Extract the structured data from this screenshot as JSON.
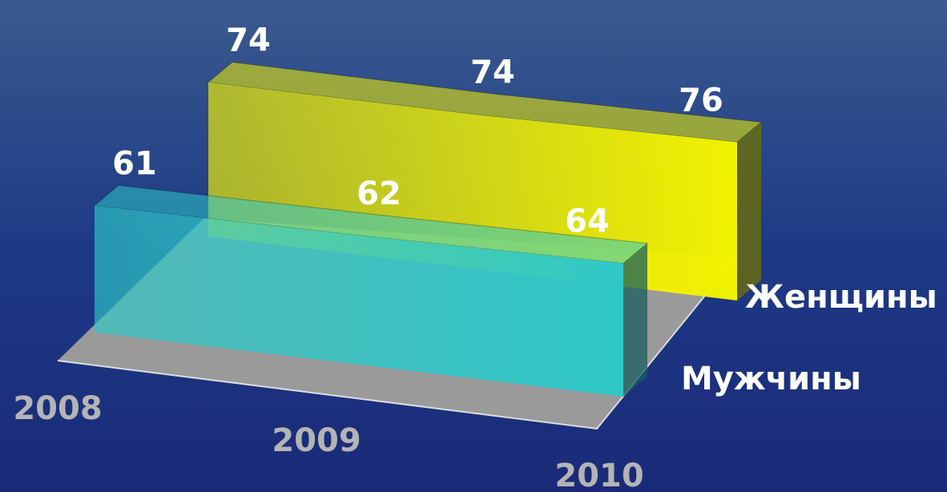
{
  "chart_data": {
    "type": "area3d",
    "categories": [
      "2008",
      "2009",
      "2010"
    ],
    "series": [
      {
        "name": "Мужчины",
        "color": "#2ec8c8",
        "values": [
          61,
          62,
          64
        ]
      },
      {
        "name": "Женщины",
        "color": "#f2f200",
        "values": [
          74,
          74,
          76
        ]
      }
    ]
  }
}
